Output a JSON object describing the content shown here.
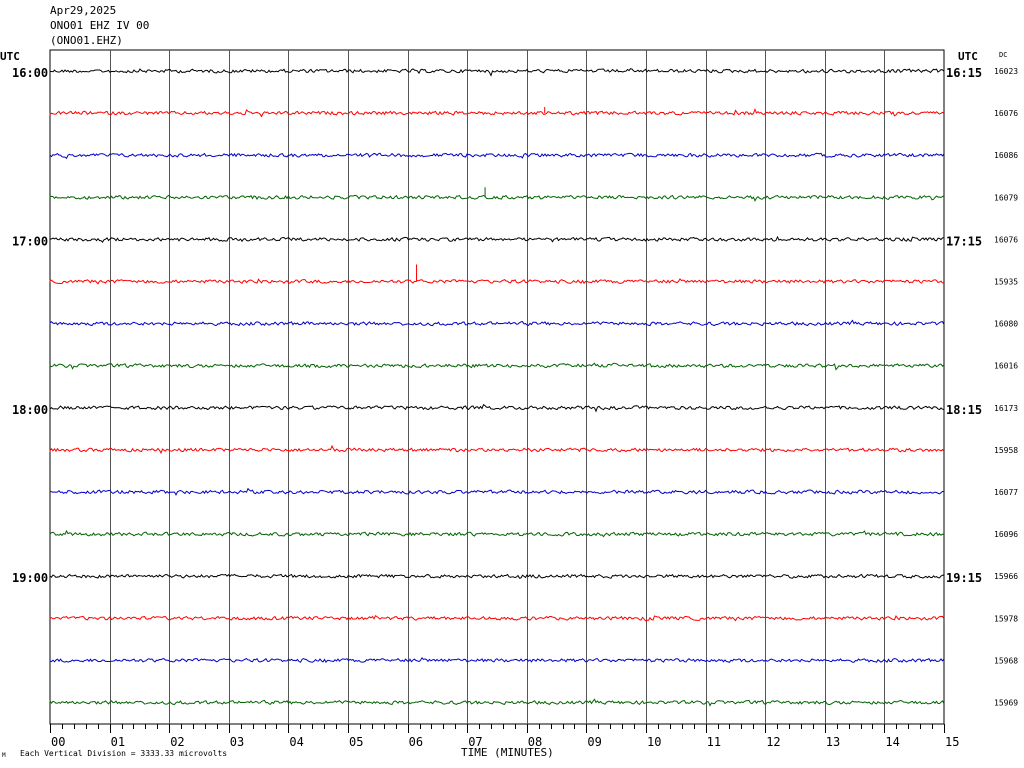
{
  "header": {
    "date": "Apr29,2025",
    "station": "ONO01 EHZ IV 00",
    "channel": "(ONO01.EHZ)"
  },
  "footnote": "Each Vertical Division = 3333.33 microvolts",
  "corner_mark": "M",
  "chart_data": {
    "type": "line",
    "title": "",
    "xlabel": "TIME (MINUTES)",
    "ylabel": "",
    "xlim": [
      0,
      15
    ],
    "x_ticks": [
      "00",
      "01",
      "02",
      "03",
      "04",
      "05",
      "06",
      "07",
      "08",
      "09",
      "10",
      "11",
      "12",
      "13",
      "14",
      "15"
    ],
    "left_axis_label": "UTC",
    "right_axis_label": "UTC",
    "dc_label": "DC",
    "left_hour_labels": [
      "16:00",
      "17:00",
      "18:00",
      "19:00"
    ],
    "right_hour_labels": [
      "16:15",
      "17:15",
      "18:15",
      "19:15"
    ],
    "trace_colors": [
      "#000000",
      "#ff0000",
      "#0000c8",
      "#006400"
    ],
    "grid": true,
    "traces": [
      {
        "dc": "16023"
      },
      {
        "dc": "16076"
      },
      {
        "dc": "16086"
      },
      {
        "dc": "16079"
      },
      {
        "dc": "16076"
      },
      {
        "dc": "15935"
      },
      {
        "dc": "16080"
      },
      {
        "dc": "16016"
      },
      {
        "dc": "16173"
      },
      {
        "dc": "15958"
      },
      {
        "dc": "16077"
      },
      {
        "dc": "16096"
      },
      {
        "dc": "15966"
      },
      {
        "dc": "15978"
      },
      {
        "dc": "15968"
      },
      {
        "dc": "15969"
      }
    ]
  }
}
